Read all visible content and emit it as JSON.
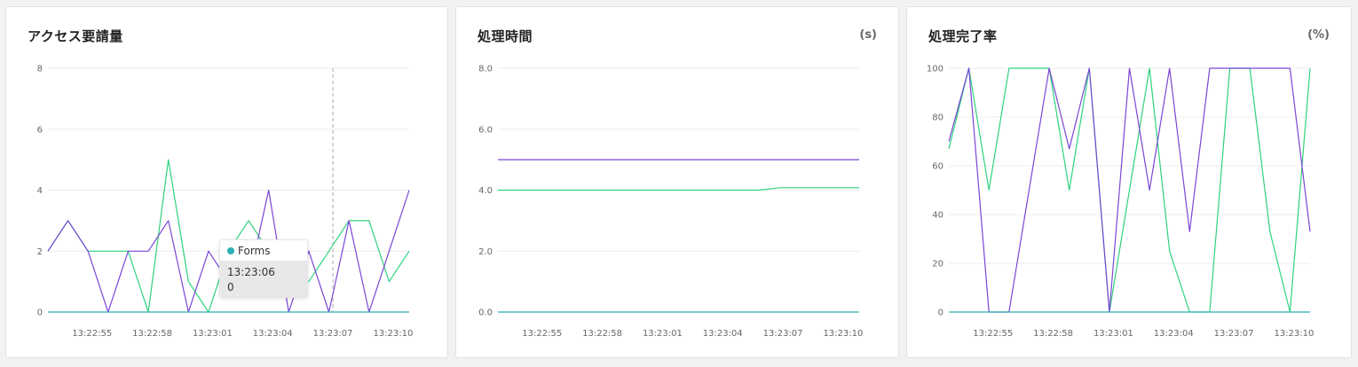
{
  "colors": {
    "green": "#2fd27e",
    "purple": "#7b45d6",
    "teal": "#2ab0b4",
    "grid": "#ececec"
  },
  "panels": [
    {
      "title": "アクセス要請量",
      "unit": ""
    },
    {
      "title": "処理時間",
      "unit": "(s)"
    },
    {
      "title": "処理完了率",
      "unit": "(%)"
    }
  ],
  "tooltip": {
    "series": "Forms",
    "time": "13:23:06",
    "value": "0",
    "dot_color": "#2ab0b4"
  },
  "chart_data": [
    {
      "type": "line",
      "title": "アクセス要請量",
      "ylim": [
        0,
        8
      ],
      "y_ticks": [
        "0",
        "2",
        "4",
        "6",
        "8"
      ],
      "x_range": [
        0,
        18
      ],
      "x_ticks": [
        {
          "x": 2.2,
          "label": "13:22:55"
        },
        {
          "x": 5.2,
          "label": "13:22:58"
        },
        {
          "x": 8.2,
          "label": "13:23:01"
        },
        {
          "x": 11.2,
          "label": "13:23:04"
        },
        {
          "x": 14.2,
          "label": "13:23:07"
        },
        {
          "x": 17.2,
          "label": "13:23:10"
        }
      ],
      "crosshair_x": 14.2,
      "series": [
        {
          "color": "#2fd27e",
          "x": [
            0,
            1,
            2,
            3,
            4,
            5,
            6,
            7,
            8,
            9,
            10,
            11,
            12,
            13,
            14,
            15,
            16,
            17,
            18
          ],
          "values": [
            2,
            3,
            2,
            2,
            2,
            0,
            5,
            1,
            0,
            2,
            3,
            2,
            1,
            1,
            2,
            3,
            3,
            1,
            2
          ]
        },
        {
          "color": "#7b45d6",
          "x": [
            0,
            1,
            2,
            3,
            4,
            5,
            6,
            7,
            8,
            9,
            10,
            11,
            12,
            13,
            14,
            15,
            16,
            17,
            18
          ],
          "values": [
            2,
            3,
            2,
            0,
            2,
            2,
            3,
            0,
            2,
            1,
            1,
            4,
            0,
            2,
            0,
            3,
            0,
            2,
            4
          ]
        },
        {
          "color": "#2ab0b4",
          "x": [
            0,
            18
          ],
          "values": [
            0,
            0
          ]
        }
      ]
    },
    {
      "type": "line",
      "title": "処理時間",
      "ylabel": "(s)",
      "ylim": [
        0,
        8
      ],
      "y_ticks": [
        "0.0",
        "2.0",
        "4.0",
        "6.0",
        "8.0"
      ],
      "x_range": [
        0,
        18
      ],
      "x_ticks": [
        {
          "x": 2.2,
          "label": "13:22:55"
        },
        {
          "x": 5.2,
          "label": "13:22:58"
        },
        {
          "x": 8.2,
          "label": "13:23:01"
        },
        {
          "x": 11.2,
          "label": "13:23:04"
        },
        {
          "x": 14.2,
          "label": "13:23:07"
        },
        {
          "x": 17.2,
          "label": "13:23:10"
        }
      ],
      "series": [
        {
          "color": "#7b45d6",
          "x": [
            0,
            18
          ],
          "values": [
            5,
            5
          ]
        },
        {
          "color": "#2fd27e",
          "x": [
            0,
            13,
            14,
            18
          ],
          "values": [
            4,
            4,
            4.08,
            4.08
          ]
        },
        {
          "color": "#2ab0b4",
          "x": [
            0,
            18
          ],
          "values": [
            0,
            0
          ]
        }
      ]
    },
    {
      "type": "line",
      "title": "処理完了率",
      "ylabel": "(%)",
      "ylim": [
        0,
        100
      ],
      "y_ticks": [
        "0",
        "20",
        "40",
        "60",
        "80",
        "100"
      ],
      "x_range": [
        0,
        18
      ],
      "x_ticks": [
        {
          "x": 2.2,
          "label": "13:22:55"
        },
        {
          "x": 5.2,
          "label": "13:22:58"
        },
        {
          "x": 8.2,
          "label": "13:23:01"
        },
        {
          "x": 11.2,
          "label": "13:23:04"
        },
        {
          "x": 14.2,
          "label": "13:23:07"
        },
        {
          "x": 17.2,
          "label": "13:23:10"
        }
      ],
      "series": [
        {
          "color": "#2fd27e",
          "x": [
            0,
            1,
            2,
            3,
            4,
            5,
            6,
            7,
            8,
            9,
            10,
            11,
            12,
            13,
            14,
            15,
            16,
            17,
            18
          ],
          "values": [
            67,
            100,
            50,
            100,
            100,
            100,
            50,
            100,
            0,
            50,
            100,
            25,
            0,
            0,
            100,
            100,
            33,
            0,
            100
          ]
        },
        {
          "color": "#7b45d6",
          "x": [
            0,
            1,
            2,
            3,
            4,
            5,
            6,
            7,
            8,
            9,
            10,
            11,
            12,
            13,
            14,
            15,
            16,
            17,
            18
          ],
          "values": [
            70,
            100,
            0,
            0,
            50,
            100,
            67,
            100,
            0,
            100,
            50,
            100,
            33,
            100,
            100,
            100,
            100,
            100,
            33
          ]
        },
        {
          "color": "#2ab0b4",
          "x": [
            0,
            18
          ],
          "values": [
            0,
            0
          ]
        }
      ]
    }
  ]
}
